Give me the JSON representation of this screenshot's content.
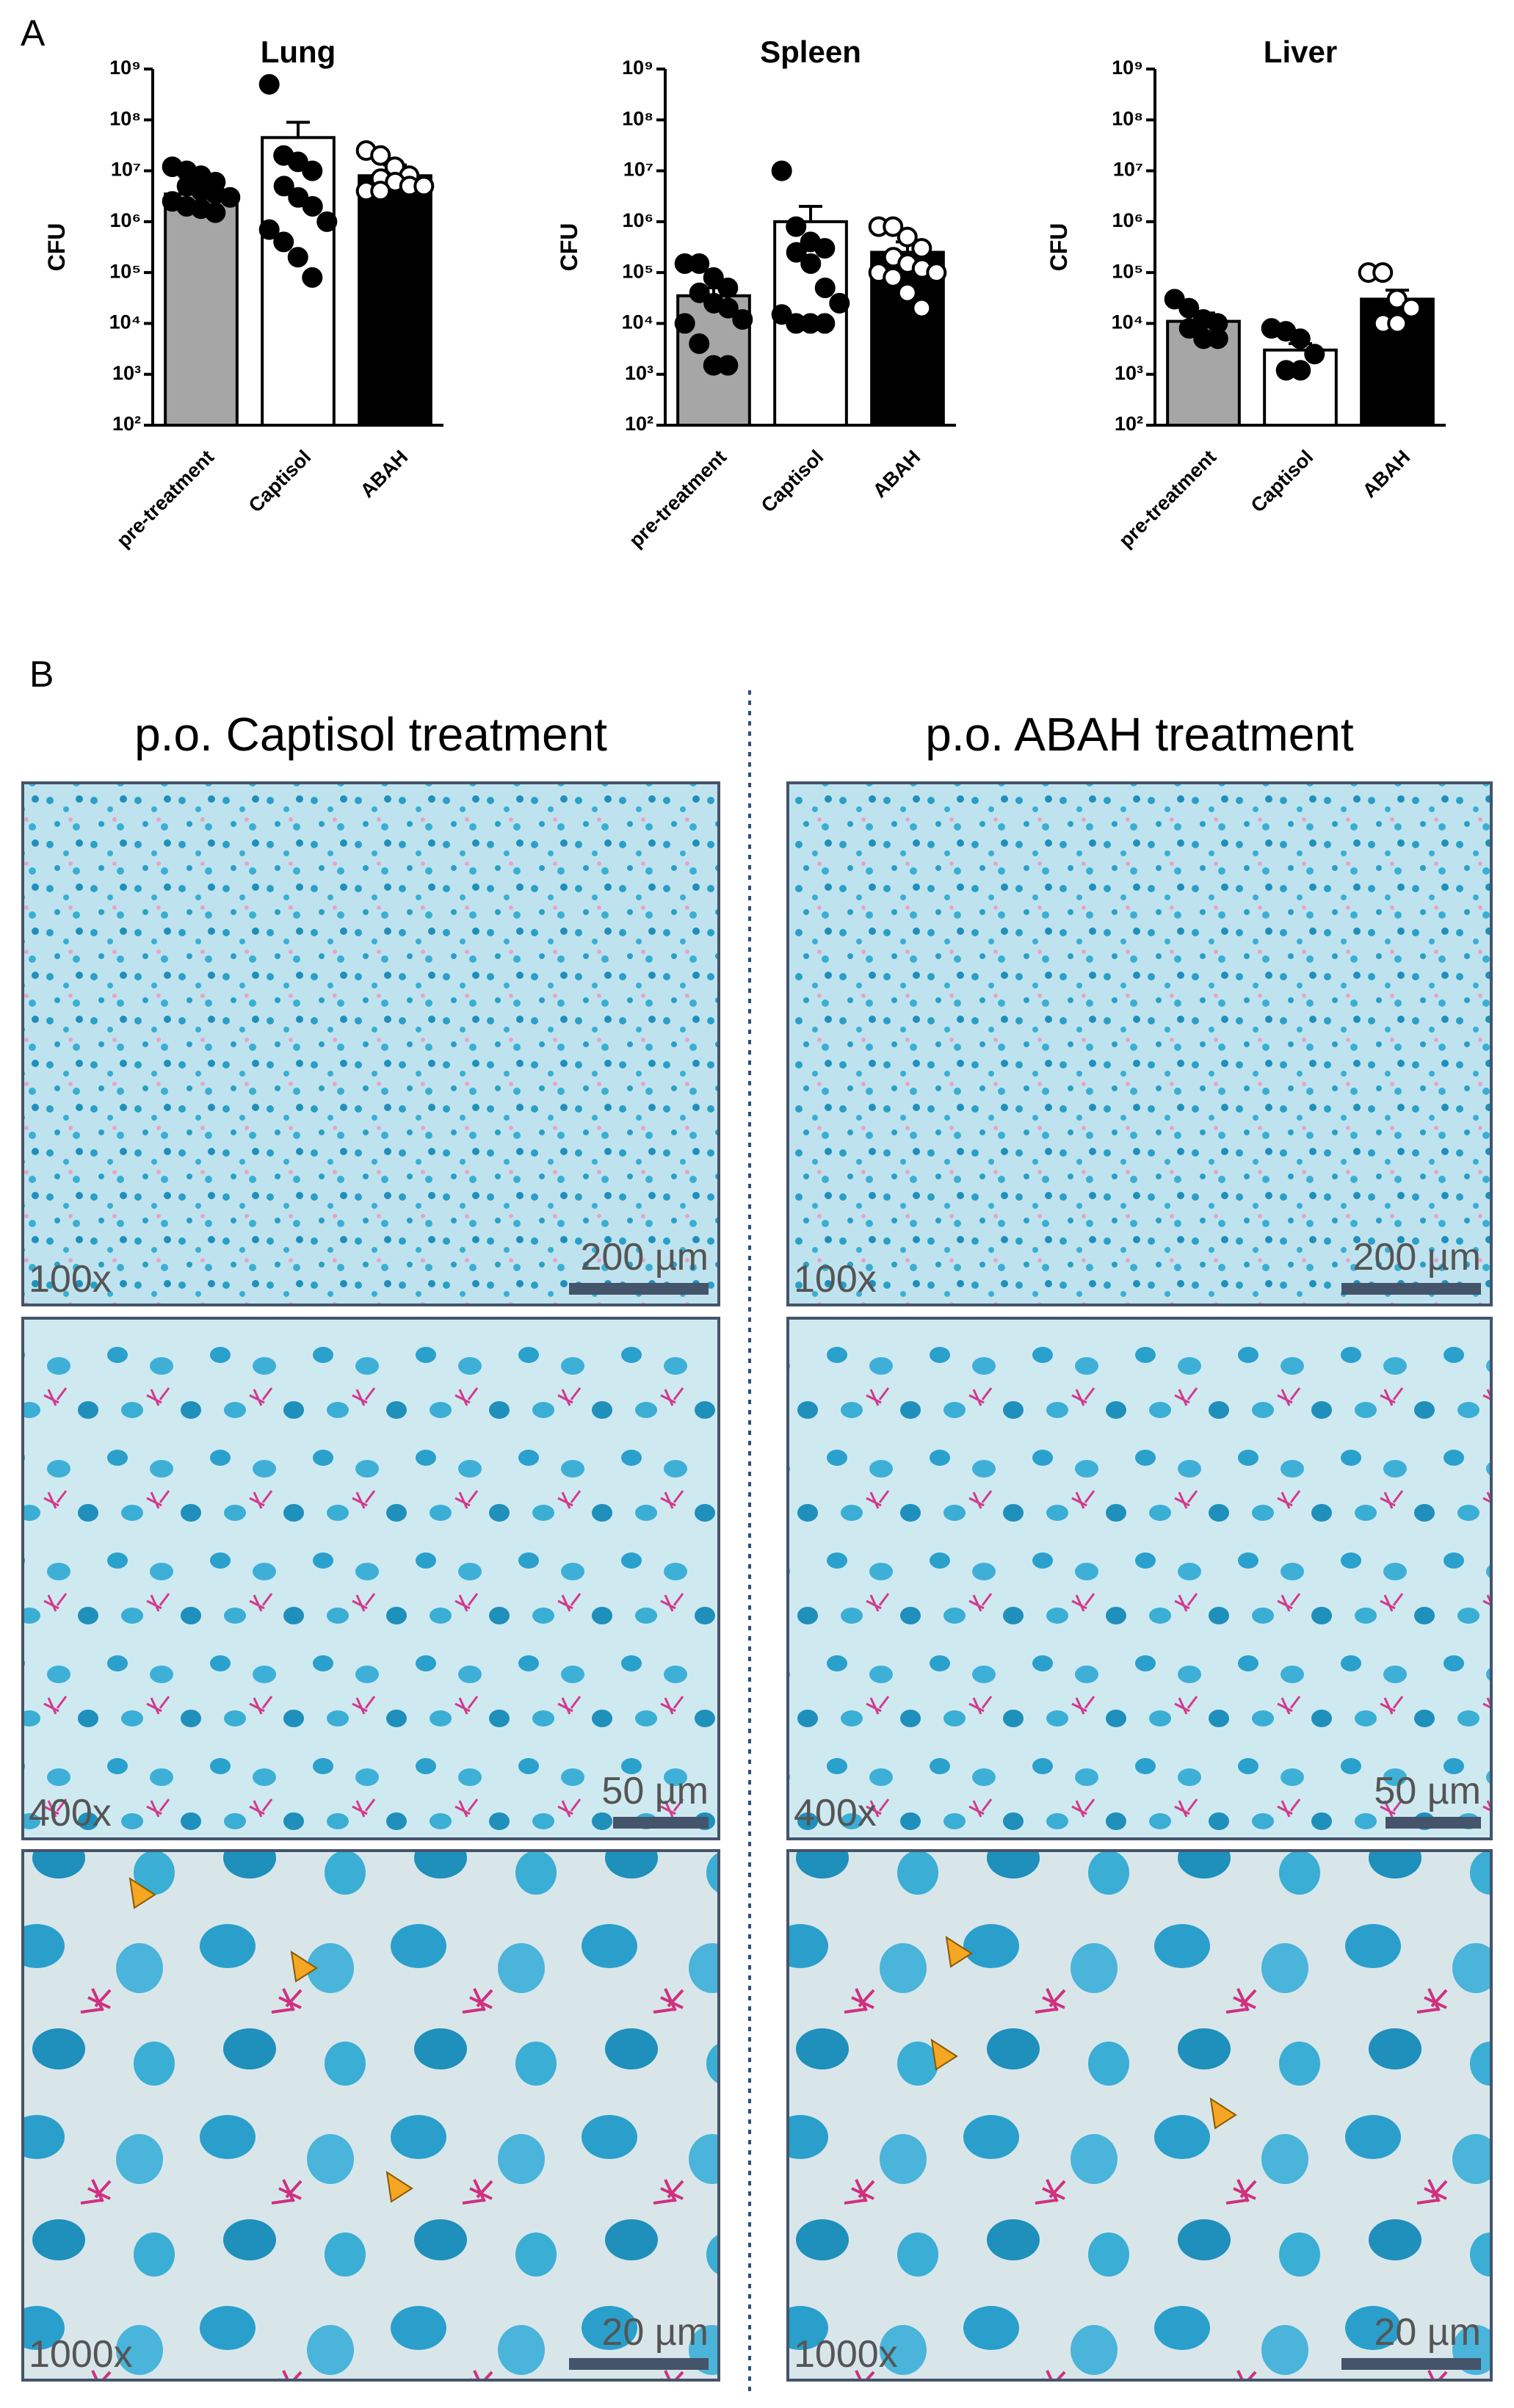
{
  "panel_labels": [
    "A",
    "B"
  ],
  "chart_data": [
    {
      "type": "bar",
      "title": "Lung",
      "y_label": "CFU",
      "log_scale": true,
      "categories": [
        "pre-treatment",
        "Captisol",
        "ABAH"
      ],
      "values": [
        3500000,
        45000000,
        8000000
      ],
      "errors": [
        1500000,
        45000000,
        5000000
      ],
      "colors": [
        "#a6a6a6",
        "#ffffff",
        "#000000"
      ],
      "point_colors": [
        "#000000",
        "#000000",
        "#ffffff"
      ],
      "points": [
        [
          12000000,
          10000000,
          8000000,
          6000000,
          5000000,
          4000000,
          3500000,
          3000000,
          2500000,
          2000000,
          1800000,
          1500000
        ],
        [
          500000000,
          20000000,
          15000000,
          10000000,
          5000000,
          3000000,
          2000000,
          1000000,
          700000,
          400000,
          200000,
          80000
        ],
        [
          25000000,
          20000000,
          12000000,
          8000000,
          7000000,
          6000000,
          5000000,
          5000000,
          4000000,
          4000000
        ]
      ],
      "ylim": [
        100,
        1000000000
      ],
      "yticks": [
        {
          "value": 100,
          "label": "10²"
        },
        {
          "value": 1000,
          "label": "10³"
        },
        {
          "value": 10000,
          "label": "10⁴"
        },
        {
          "value": 100000,
          "label": "10⁵"
        },
        {
          "value": 1000000,
          "label": "10⁶"
        },
        {
          "value": 10000000,
          "label": "10⁷"
        },
        {
          "value": 100000000,
          "label": "10⁸"
        },
        {
          "value": 1000000000,
          "label": "10⁹"
        }
      ]
    },
    {
      "type": "bar",
      "title": "Spleen",
      "y_label": "CFU",
      "log_scale": true,
      "categories": [
        "pre-treatment",
        "Captisol",
        "ABAH"
      ],
      "values": [
        35000,
        1000000,
        250000
      ],
      "errors": [
        15000,
        1000000,
        150000
      ],
      "colors": [
        "#a6a6a6",
        "#ffffff",
        "#000000"
      ],
      "point_colors": [
        "#000000",
        "#000000",
        "#ffffff"
      ],
      "points": [
        [
          150000,
          150000,
          80000,
          50000,
          40000,
          25000,
          20000,
          12000,
          10000,
          4000,
          1500,
          1500
        ],
        [
          10000000,
          800000,
          400000,
          300000,
          250000,
          150000,
          50000,
          25000,
          15000,
          10000,
          10000,
          10000
        ],
        [
          800000,
          800000,
          500000,
          300000,
          200000,
          150000,
          120000,
          100000,
          100000,
          80000,
          40000,
          20000
        ]
      ],
      "ylim": [
        100,
        1000000000
      ],
      "yticks": [
        {
          "value": 100,
          "label": "10²"
        },
        {
          "value": 1000,
          "label": "10³"
        },
        {
          "value": 10000,
          "label": "10⁴"
        },
        {
          "value": 100000,
          "label": "10⁵"
        },
        {
          "value": 1000000,
          "label": "10⁶"
        },
        {
          "value": 10000000,
          "label": "10⁷"
        },
        {
          "value": 100000000,
          "label": "10⁸"
        },
        {
          "value": 1000000000,
          "label": "10⁹"
        }
      ]
    },
    {
      "type": "bar",
      "title": "Liver",
      "y_label": "CFU",
      "log_scale": true,
      "categories": [
        "pre-treatment",
        "Captisol",
        "ABAH"
      ],
      "values": [
        11000,
        3000,
        30000
      ],
      "errors": [
        5000,
        1000,
        15000
      ],
      "colors": [
        "#a6a6a6",
        "#ffffff",
        "#000000"
      ],
      "point_colors": [
        "#000000",
        "#000000",
        "#ffffff"
      ],
      "points": [
        [
          30000,
          20000,
          12000,
          10000,
          8000,
          5000,
          5000
        ],
        [
          8000,
          7000,
          5000,
          2500,
          1200,
          1200
        ],
        [
          100000,
          100000,
          30000,
          20000,
          10000,
          10000
        ]
      ],
      "ylim": [
        100,
        1000000000
      ],
      "yticks": [
        {
          "value": 100,
          "label": "10²"
        },
        {
          "value": 1000,
          "label": "10³"
        },
        {
          "value": 10000,
          "label": "10⁴"
        },
        {
          "value": 100000,
          "label": "10⁵"
        },
        {
          "value": 1000000,
          "label": "10⁶"
        },
        {
          "value": 10000000,
          "label": "10⁷"
        },
        {
          "value": 100000000,
          "label": "10⁸"
        },
        {
          "value": 1000000000,
          "label": "10⁹"
        }
      ]
    }
  ],
  "micrographs": [
    {
      "title": "p.o. Captisol treatment",
      "panels": [
        {
          "magnification": "100x",
          "scale_bar": "200 µm"
        },
        {
          "magnification": "400x",
          "scale_bar": "50 µm"
        },
        {
          "magnification": "1000x",
          "scale_bar": "20 µm"
        }
      ]
    },
    {
      "title": "p.o. ABAH treatment",
      "panels": [
        {
          "magnification": "100x",
          "scale_bar": "200 µm"
        },
        {
          "magnification": "400x",
          "scale_bar": "50 µm"
        },
        {
          "magnification": "1000x",
          "scale_bar": "20 µm"
        }
      ]
    }
  ]
}
